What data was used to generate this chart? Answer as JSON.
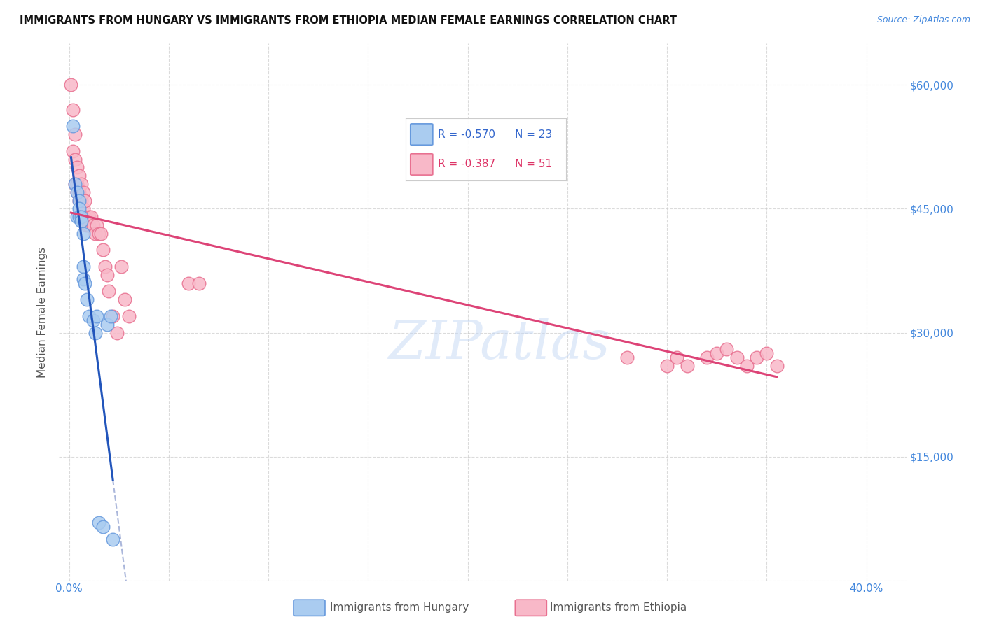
{
  "title": "IMMIGRANTS FROM HUNGARY VS IMMIGRANTS FROM ETHIOPIA MEDIAN FEMALE EARNINGS CORRELATION CHART",
  "source": "Source: ZipAtlas.com",
  "ylabel": "Median Female Earnings",
  "yticks": [
    0,
    15000,
    30000,
    45000,
    60000
  ],
  "ytick_labels": [
    "",
    "$15,000",
    "$30,000",
    "$45,000",
    "$60,000"
  ],
  "watermark": "ZIPatlas",
  "legend1_r": "R = -0.570",
  "legend1_n": "N = 23",
  "legend2_r": "R = -0.387",
  "legend2_n": "N = 51",
  "legend_label1": "Immigrants from Hungary",
  "legend_label2": "Immigrants from Ethiopia",
  "hungary_color": "#aaccf0",
  "hungary_edge": "#6699dd",
  "ethiopia_color": "#f8b8c8",
  "ethiopia_edge": "#e87090",
  "trendline_hungary_color": "#2255bb",
  "trendline_ethiopia_color": "#dd4477",
  "hungary_x": [
    0.002,
    0.003,
    0.004,
    0.004,
    0.005,
    0.005,
    0.005,
    0.006,
    0.006,
    0.007,
    0.007,
    0.007,
    0.008,
    0.009,
    0.01,
    0.012,
    0.013,
    0.014,
    0.015,
    0.017,
    0.019,
    0.021,
    0.022
  ],
  "hungary_y": [
    55000,
    48000,
    47000,
    44000,
    46000,
    45000,
    44000,
    44000,
    43500,
    42000,
    38000,
    36500,
    36000,
    34000,
    32000,
    31500,
    30000,
    32000,
    7000,
    6500,
    31000,
    32000,
    5000
  ],
  "ethiopia_x": [
    0.001,
    0.002,
    0.002,
    0.003,
    0.003,
    0.003,
    0.004,
    0.004,
    0.004,
    0.005,
    0.005,
    0.005,
    0.006,
    0.006,
    0.007,
    0.007,
    0.007,
    0.008,
    0.008,
    0.009,
    0.01,
    0.01,
    0.011,
    0.012,
    0.013,
    0.014,
    0.015,
    0.016,
    0.017,
    0.018,
    0.019,
    0.02,
    0.022,
    0.024,
    0.026,
    0.028,
    0.03,
    0.06,
    0.065,
    0.28,
    0.3,
    0.305,
    0.31,
    0.32,
    0.325,
    0.33,
    0.335,
    0.34,
    0.345,
    0.35,
    0.355
  ],
  "ethiopia_y": [
    60000,
    57000,
    52000,
    54000,
    51000,
    48000,
    50000,
    48000,
    47000,
    49000,
    47000,
    46000,
    48000,
    46000,
    47000,
    45000,
    44000,
    46000,
    44000,
    43000,
    44000,
    43000,
    44000,
    43000,
    42000,
    43000,
    42000,
    42000,
    40000,
    38000,
    37000,
    35000,
    32000,
    30000,
    38000,
    34000,
    32000,
    36000,
    36000,
    27000,
    26000,
    27000,
    26000,
    27000,
    27500,
    28000,
    27000,
    26000,
    27000,
    27500,
    26000
  ],
  "xlim": [
    -0.005,
    0.42
  ],
  "ylim": [
    0,
    65000
  ],
  "background_color": "#ffffff",
  "title_fontsize": 10.5,
  "source_fontsize": 9,
  "axis_label_color": "#4488dd",
  "grid_color": "#cccccc",
  "hungary_trendline_x_start": 0.001,
  "hungary_trendline_x_end": 0.022,
  "hungary_trendline_ext_end": 0.35,
  "ethiopia_trendline_x_start": 0.001,
  "ethiopia_trendline_x_end": 0.355
}
